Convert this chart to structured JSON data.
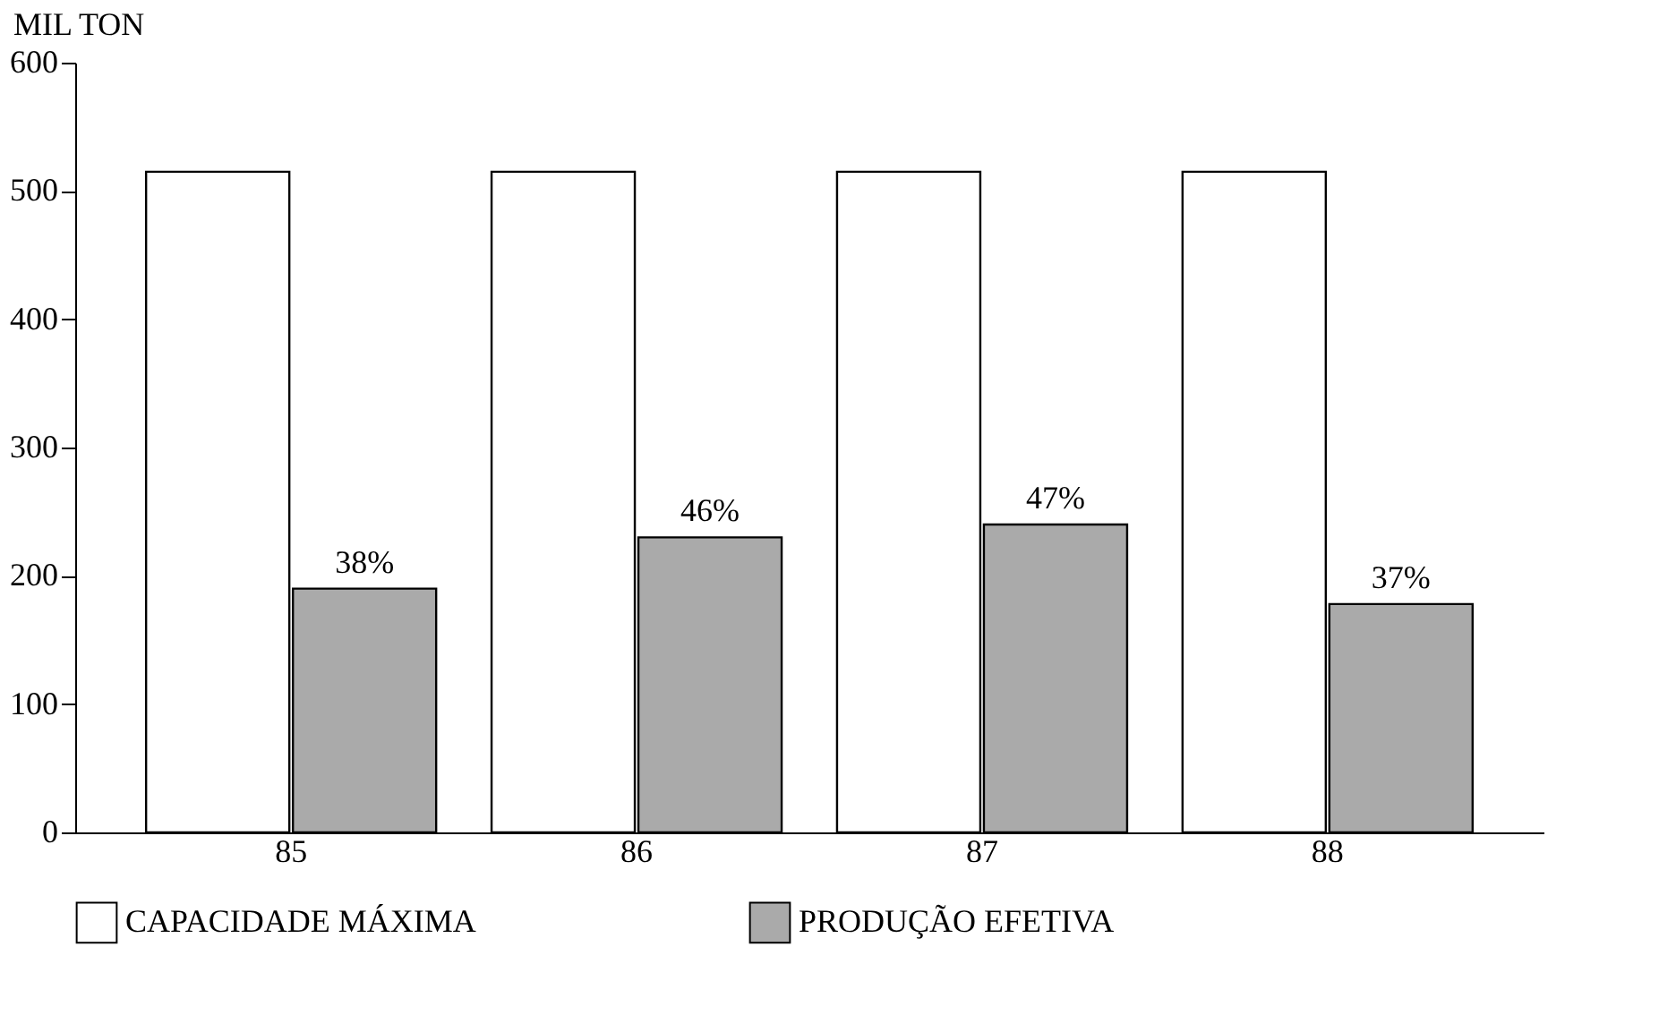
{
  "chart_data": {
    "type": "bar",
    "ylabel": "MIL TON",
    "categories": [
      "85",
      "86",
      "87",
      "88"
    ],
    "series": [
      {
        "name": "CAPACIDADE MÁXIMA",
        "color": "#ffffff",
        "values": [
          515,
          515,
          515,
          515
        ]
      },
      {
        "name": "PRODUÇÃO EFETIVA",
        "color": "#aaaaaa",
        "values": [
          190,
          230,
          240,
          178
        ]
      }
    ],
    "annotations": [
      {
        "text": "38%",
        "x": "85",
        "y": 190
      },
      {
        "text": "46%",
        "x": "86",
        "y": 230
      },
      {
        "text": "47%",
        "x": "87",
        "y": 240
      },
      {
        "text": "37%",
        "x": "88",
        "y": 178
      }
    ],
    "ylim": [
      0,
      600
    ],
    "yticks": [
      0,
      100,
      200,
      300,
      400,
      500,
      600
    ],
    "grid": false,
    "legend": "bottom"
  }
}
